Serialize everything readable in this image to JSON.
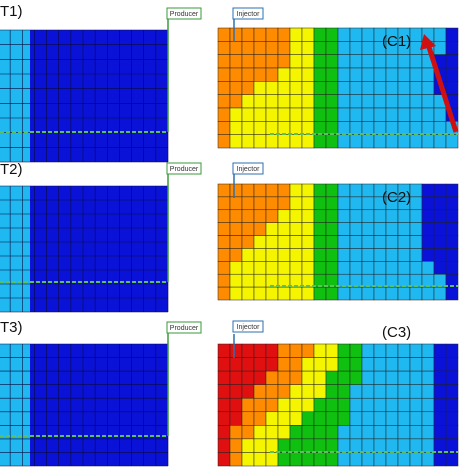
{
  "panels": [
    {
      "label": "(T1)",
      "well": "Producer"
    },
    {
      "label": "(C1)",
      "well": "Injector"
    },
    {
      "label": "(T2)",
      "well": "Producer"
    },
    {
      "label": "(C2)",
      "well": "Injector"
    },
    {
      "label": "(T3)",
      "well": "Producer"
    },
    {
      "label": "(C3)",
      "well": "Injector"
    }
  ]
}
